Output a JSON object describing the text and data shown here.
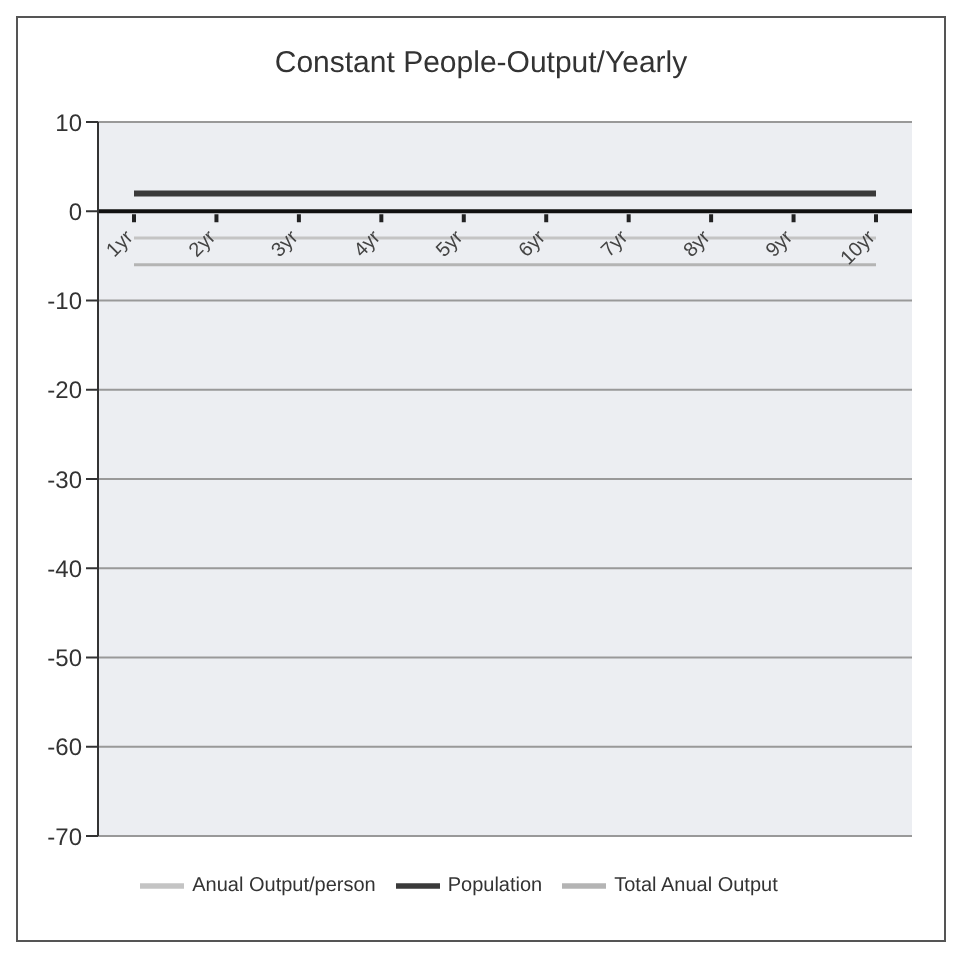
{
  "chart_data": {
    "type": "line",
    "title": "Constant People-Output/Yearly",
    "categories": [
      "1yr",
      "2yr",
      "3yr",
      "4yr",
      "5yr",
      "6yr",
      "7yr",
      "8yr",
      "9yr",
      "10yr"
    ],
    "series": [
      {
        "name": "Anual Output/person",
        "color": "#c4c4c4",
        "values": [
          -3,
          -3,
          -3,
          -3,
          -3,
          -3,
          -3,
          -3,
          -3,
          -3
        ]
      },
      {
        "name": "Population",
        "color": "#3a3a3a",
        "values": [
          2,
          2,
          2,
          2,
          2,
          2,
          2,
          2,
          2,
          2
        ]
      },
      {
        "name": "Total Anual Output",
        "color": "#b4b4b4",
        "values": [
          -6,
          -6,
          -6,
          -6,
          -6,
          -6,
          -6,
          -6,
          -6,
          -6
        ]
      }
    ],
    "ylim": [
      -70,
      10
    ],
    "yticks": [
      10,
      0,
      -10,
      -20,
      -30,
      -40,
      -50,
      -60,
      -70
    ],
    "grid": "y",
    "legend": "bottom",
    "marker": "none",
    "line_style": "solid"
  }
}
